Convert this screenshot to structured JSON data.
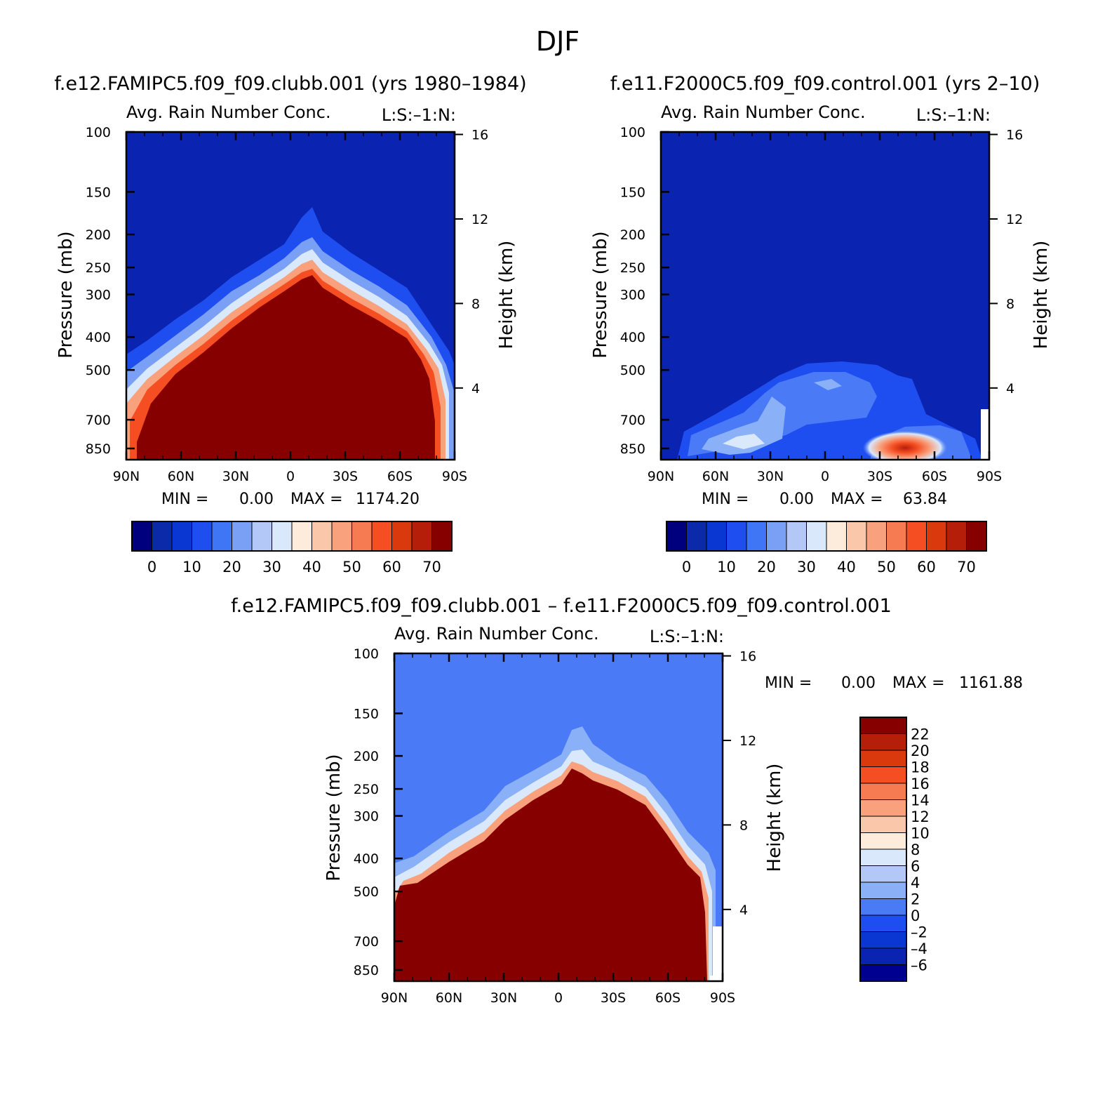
{
  "figure_title": "DJF",
  "colors": {
    "seq": [
      "#00007f",
      "#0a2aaa",
      "#0a37d2",
      "#1e4ef0",
      "#3f76f5",
      "#7aa0f5",
      "#b4c8f8",
      "#d9e8fb",
      "#fdebdb",
      "#fbc7ab",
      "#f9a07c",
      "#f67a52",
      "#f54e22",
      "#da380d",
      "#b51f0a",
      "#870000"
    ],
    "diff": [
      "#000090",
      "#0a23b0",
      "#0a37d2",
      "#1e4ef0",
      "#4a7af5",
      "#8ab0f7",
      "#b4c8f8",
      "#d9e8fb",
      "#fdebdb",
      "#fbc7ab",
      "#f9a07c",
      "#f67a52",
      "#f54e22",
      "#da380d",
      "#b51f0a",
      "#870000"
    ]
  },
  "panels": {
    "clubb": {
      "case_title": "f.e12.FAMIPC5.f09_f09.clubb.001 (yrs 1980–1984)",
      "field_title": "Avg. Rain Number Conc.",
      "units_label": "L:S:–1:N:",
      "ylabel": "Pressure (mb)",
      "ylabel_right": "Height (km)",
      "min_label": "MIN =",
      "min_value": "0.00",
      "max_label": "MAX =",
      "max_value": "1174.20"
    },
    "control": {
      "case_title": "f.e11.F2000C5.f09_f09.control.001 (yrs 2–10)",
      "field_title": "Avg. Rain Number Conc.",
      "units_label": "L:S:–1:N:",
      "ylabel": "Pressure (mb)",
      "ylabel_right": "Height (km)",
      "min_label": "MIN =",
      "min_value": "0.00",
      "max_label": "MAX =",
      "max_value": "63.84"
    },
    "diff": {
      "case_title": "f.e12.FAMIPC5.f09_f09.clubb.001 – f.e11.F2000C5.f09_f09.control.001",
      "field_title": "Avg. Rain Number Conc.",
      "units_label": "L:S:–1:N:",
      "ylabel": "Pressure (mb)",
      "ylabel_right": "Height (km)",
      "min_label": "MIN =",
      "min_value": "0.00",
      "max_label": "MAX =",
      "max_value": "1161.88"
    }
  },
  "chart_data": [
    {
      "type": "heatmap",
      "panel": "clubb",
      "x_ticks": [
        "90N",
        "60N",
        "30N",
        "0",
        "30S",
        "60S",
        "90S"
      ],
      "y_ticks": [
        "100",
        "150",
        "200",
        "250",
        "300",
        "400",
        "500",
        "700",
        "850"
      ],
      "y_right_ticks": [
        "16",
        "12",
        "8",
        "4"
      ],
      "ylim": [
        850,
        100
      ],
      "colorbar_labels": [
        "0",
        "10",
        "20",
        "30",
        "40",
        "50",
        "60",
        "70"
      ],
      "top_of_field_hPa": [
        [
          90,
          700
        ],
        [
          80,
          560
        ],
        [
          60,
          450
        ],
        [
          40,
          360
        ],
        [
          20,
          290
        ],
        [
          10,
          255
        ],
        [
          5,
          230
        ],
        [
          0,
          245
        ],
        [
          -10,
          270
        ],
        [
          -30,
          310
        ],
        [
          -50,
          370
        ],
        [
          -70,
          440
        ],
        [
          -80,
          520
        ],
        [
          -88,
          700
        ],
        [
          -90,
          850
        ]
      ],
      "field_max": 1174.2
    },
    {
      "type": "heatmap",
      "panel": "control",
      "x_ticks": [
        "90N",
        "60N",
        "30N",
        "0",
        "30S",
        "60S",
        "90S"
      ],
      "y_ticks": [
        "100",
        "150",
        "200",
        "250",
        "300",
        "400",
        "500",
        "700",
        "850"
      ],
      "y_right_ticks": [
        "16",
        "12",
        "8",
        "4"
      ],
      "ylim": [
        850,
        100
      ],
      "colorbar_labels": [
        "0",
        "10",
        "20",
        "30",
        "40",
        "50",
        "60",
        "70"
      ],
      "field_max": 63.84,
      "peak_location": {
        "lat": -45,
        "pressure_hPa": 850
      }
    },
    {
      "type": "heatmap",
      "panel": "difference",
      "x_ticks": [
        "90N",
        "60N",
        "30N",
        "0",
        "30S",
        "60S",
        "90S"
      ],
      "y_ticks": [
        "100",
        "150",
        "200",
        "250",
        "300",
        "400",
        "500",
        "700",
        "850"
      ],
      "y_right_ticks": [
        "16",
        "12",
        "8",
        "4"
      ],
      "ylim": [
        850,
        100
      ],
      "colorbar_labels": [
        "22",
        "20",
        "18",
        "16",
        "14",
        "12",
        "10",
        "8",
        "6",
        "4",
        "2",
        "0",
        "–2",
        "–4",
        "–6"
      ],
      "field_max": 1161.88
    }
  ]
}
